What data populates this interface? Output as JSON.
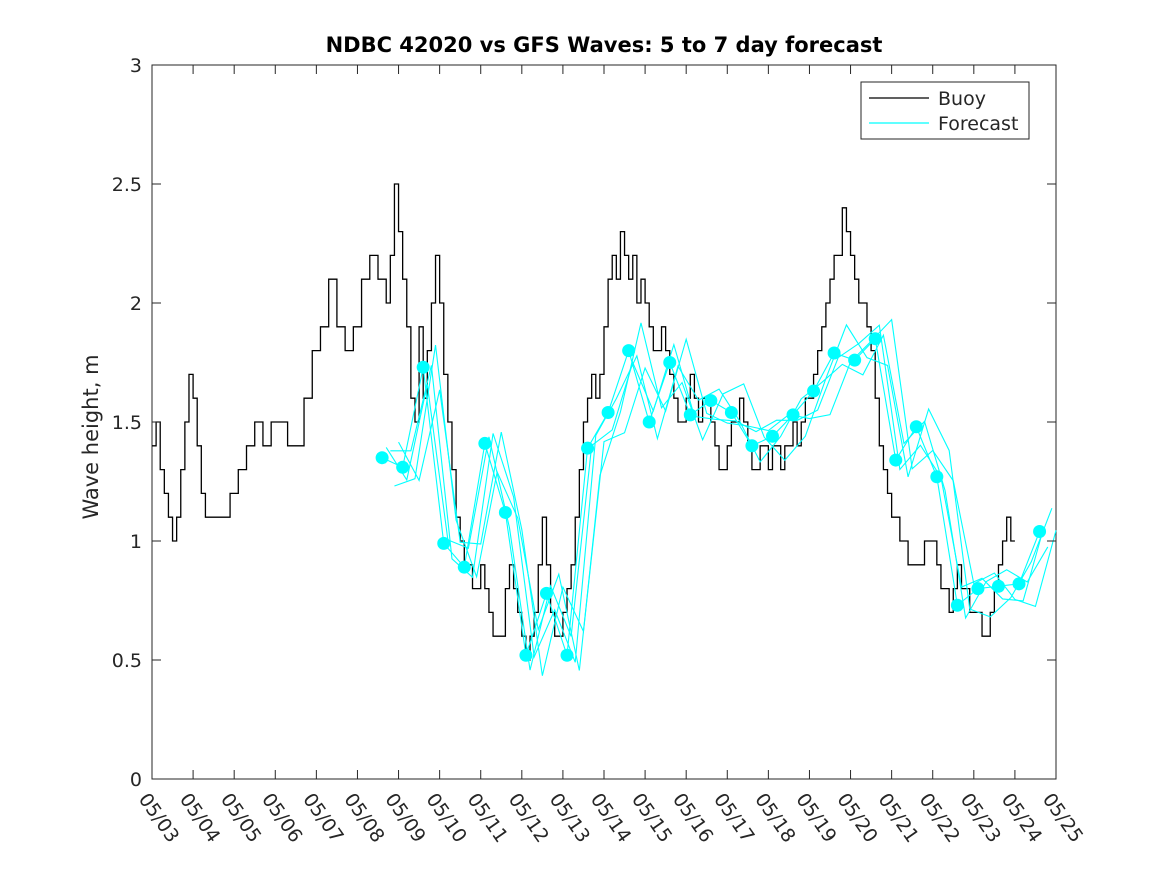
{
  "chart_data": {
    "type": "line",
    "title": "NDBC 42020 vs GFS Waves: 5 to 7 day forecast",
    "xlabel": "",
    "ylabel": "Wave height, m",
    "xlim": [
      "05/03",
      "05/25"
    ],
    "ylim": [
      0,
      3
    ],
    "x_ticks": [
      "05/03",
      "05/04",
      "05/05",
      "05/06",
      "05/07",
      "05/08",
      "05/09",
      "05/10",
      "05/11",
      "05/12",
      "05/13",
      "05/14",
      "05/15",
      "05/16",
      "05/17",
      "05/18",
      "05/19",
      "05/20",
      "05/21",
      "05/22",
      "05/23",
      "05/24",
      "05/25"
    ],
    "y_ticks": [
      "0",
      "0.5",
      "1",
      "1.5",
      "2",
      "2.5",
      "3"
    ],
    "grid": false,
    "legend_position": "top-right",
    "legend": [
      {
        "label": "Buoy",
        "color": "#000000"
      },
      {
        "label": "Forecast",
        "color": "#00ffff"
      }
    ],
    "colors": {
      "buoy": "#000000",
      "forecast": "#00ffff",
      "marker": "#00ffff"
    },
    "x_note": "x values are days since 05/03 00:00",
    "series": [
      {
        "name": "Buoy",
        "points": [
          [
            0,
            1.4
          ],
          [
            0.1,
            1.5
          ],
          [
            0.2,
            1.3
          ],
          [
            0.3,
            1.2
          ],
          [
            0.4,
            1.1
          ],
          [
            0.5,
            1.0
          ],
          [
            0.6,
            1.1
          ],
          [
            0.7,
            1.3
          ],
          [
            0.8,
            1.5
          ],
          [
            0.9,
            1.7
          ],
          [
            1.0,
            1.6
          ],
          [
            1.1,
            1.4
          ],
          [
            1.2,
            1.2
          ],
          [
            1.3,
            1.1
          ],
          [
            1.5,
            1.1
          ],
          [
            1.7,
            1.1
          ],
          [
            1.9,
            1.2
          ],
          [
            2.1,
            1.3
          ],
          [
            2.3,
            1.4
          ],
          [
            2.5,
            1.5
          ],
          [
            2.7,
            1.4
          ],
          [
            2.9,
            1.5
          ],
          [
            3.1,
            1.5
          ],
          [
            3.3,
            1.4
          ],
          [
            3.5,
            1.4
          ],
          [
            3.7,
            1.6
          ],
          [
            3.9,
            1.8
          ],
          [
            4.1,
            1.9
          ],
          [
            4.3,
            2.1
          ],
          [
            4.5,
            1.9
          ],
          [
            4.7,
            1.8
          ],
          [
            4.9,
            1.9
          ],
          [
            5.1,
            2.1
          ],
          [
            5.3,
            2.2
          ],
          [
            5.5,
            2.1
          ],
          [
            5.7,
            2.0
          ],
          [
            5.8,
            2.2
          ],
          [
            5.9,
            2.5
          ],
          [
            6.0,
            2.3
          ],
          [
            6.1,
            2.1
          ],
          [
            6.2,
            1.9
          ],
          [
            6.3,
            1.6
          ],
          [
            6.4,
            1.5
          ],
          [
            6.5,
            1.9
          ],
          [
            6.6,
            1.6
          ],
          [
            6.7,
            1.8
          ],
          [
            6.8,
            2.0
          ],
          [
            6.9,
            2.2
          ],
          [
            7.0,
            2.0
          ],
          [
            7.1,
            1.7
          ],
          [
            7.2,
            1.5
          ],
          [
            7.3,
            1.3
          ],
          [
            7.4,
            1.1
          ],
          [
            7.5,
            1.0
          ],
          [
            7.6,
            0.9
          ],
          [
            7.7,
            0.9
          ],
          [
            7.8,
            0.8
          ],
          [
            7.9,
            0.8
          ],
          [
            8.0,
            0.9
          ],
          [
            8.1,
            0.8
          ],
          [
            8.2,
            0.7
          ],
          [
            8.3,
            0.6
          ],
          [
            8.4,
            0.6
          ],
          [
            8.5,
            0.6
          ],
          [
            8.6,
            0.8
          ],
          [
            8.7,
            0.9
          ],
          [
            8.8,
            0.8
          ],
          [
            8.9,
            0.7
          ],
          [
            9.0,
            0.6
          ],
          [
            9.1,
            0.5
          ],
          [
            9.2,
            0.6
          ],
          [
            9.3,
            0.7
          ],
          [
            9.4,
            0.9
          ],
          [
            9.5,
            1.1
          ],
          [
            9.6,
            0.9
          ],
          [
            9.7,
            0.7
          ],
          [
            9.8,
            0.6
          ],
          [
            9.9,
            0.6
          ],
          [
            10.0,
            0.7
          ],
          [
            10.1,
            0.8
          ],
          [
            10.2,
            0.9
          ],
          [
            10.3,
            1.1
          ],
          [
            10.4,
            1.3
          ],
          [
            10.5,
            1.5
          ],
          [
            10.6,
            1.6
          ],
          [
            10.7,
            1.7
          ],
          [
            10.8,
            1.6
          ],
          [
            10.9,
            1.7
          ],
          [
            11.0,
            1.9
          ],
          [
            11.1,
            2.1
          ],
          [
            11.2,
            2.2
          ],
          [
            11.3,
            2.1
          ],
          [
            11.4,
            2.3
          ],
          [
            11.5,
            2.2
          ],
          [
            11.6,
            2.1
          ],
          [
            11.7,
            2.2
          ],
          [
            11.8,
            2.0
          ],
          [
            11.9,
            2.1
          ],
          [
            12.0,
            2.0
          ],
          [
            12.1,
            1.9
          ],
          [
            12.2,
            1.8
          ],
          [
            12.3,
            1.8
          ],
          [
            12.4,
            1.9
          ],
          [
            12.5,
            1.8
          ],
          [
            12.6,
            1.7
          ],
          [
            12.7,
            1.6
          ],
          [
            12.8,
            1.5
          ],
          [
            12.9,
            1.5
          ],
          [
            13.0,
            1.6
          ],
          [
            13.1,
            1.7
          ],
          [
            13.2,
            1.6
          ],
          [
            13.3,
            1.5
          ],
          [
            13.4,
            1.6
          ],
          [
            13.5,
            1.6
          ],
          [
            13.6,
            1.5
          ],
          [
            13.7,
            1.4
          ],
          [
            13.8,
            1.3
          ],
          [
            13.9,
            1.3
          ],
          [
            14.0,
            1.4
          ],
          [
            14.1,
            1.5
          ],
          [
            14.2,
            1.5
          ],
          [
            14.3,
            1.6
          ],
          [
            14.4,
            1.5
          ],
          [
            14.5,
            1.4
          ],
          [
            14.6,
            1.3
          ],
          [
            14.7,
            1.3
          ],
          [
            14.8,
            1.4
          ],
          [
            14.9,
            1.4
          ],
          [
            15.0,
            1.3
          ],
          [
            15.1,
            1.4
          ],
          [
            15.2,
            1.4
          ],
          [
            15.3,
            1.3
          ],
          [
            15.4,
            1.4
          ],
          [
            15.5,
            1.4
          ],
          [
            15.6,
            1.5
          ],
          [
            15.7,
            1.4
          ],
          [
            15.8,
            1.5
          ],
          [
            15.9,
            1.6
          ],
          [
            16.0,
            1.6
          ],
          [
            16.1,
            1.7
          ],
          [
            16.2,
            1.8
          ],
          [
            16.3,
            1.9
          ],
          [
            16.4,
            2.0
          ],
          [
            16.5,
            2.1
          ],
          [
            16.6,
            2.2
          ],
          [
            16.7,
            2.2
          ],
          [
            16.8,
            2.4
          ],
          [
            16.9,
            2.3
          ],
          [
            17.0,
            2.2
          ],
          [
            17.1,
            2.1
          ],
          [
            17.2,
            2.0
          ],
          [
            17.3,
            2.0
          ],
          [
            17.4,
            1.9
          ],
          [
            17.5,
            1.8
          ],
          [
            17.6,
            1.6
          ],
          [
            17.7,
            1.4
          ],
          [
            17.8,
            1.3
          ],
          [
            17.9,
            1.2
          ],
          [
            18.0,
            1.1
          ],
          [
            18.1,
            1.1
          ],
          [
            18.2,
            1.0
          ],
          [
            18.3,
            1.0
          ],
          [
            18.4,
            0.9
          ],
          [
            18.5,
            0.9
          ],
          [
            18.6,
            0.9
          ],
          [
            18.7,
            0.9
          ],
          [
            18.8,
            1.0
          ],
          [
            18.9,
            1.0
          ],
          [
            19.0,
            1.0
          ],
          [
            19.1,
            0.9
          ],
          [
            19.2,
            0.8
          ],
          [
            19.3,
            0.8
          ],
          [
            19.4,
            0.7
          ],
          [
            19.5,
            0.8
          ],
          [
            19.6,
            0.9
          ],
          [
            19.7,
            0.8
          ],
          [
            19.8,
            0.8
          ],
          [
            19.9,
            0.7
          ],
          [
            20.0,
            0.7
          ],
          [
            20.1,
            0.7
          ],
          [
            20.2,
            0.6
          ],
          [
            20.3,
            0.6
          ],
          [
            20.4,
            0.7
          ],
          [
            20.5,
            0.8
          ],
          [
            20.6,
            0.9
          ],
          [
            20.7,
            1.0
          ],
          [
            20.8,
            1.1
          ],
          [
            20.9,
            1.0
          ],
          [
            21.0,
            1.0
          ]
        ]
      },
      {
        "name": "Forecast",
        "points": [
          [
            5.6,
            1.35
          ],
          [
            6.1,
            1.31
          ],
          [
            6.6,
            1.73
          ],
          [
            7.1,
            0.99
          ],
          [
            7.6,
            0.89
          ],
          [
            8.1,
            1.41
          ],
          [
            8.6,
            1.12
          ],
          [
            9.1,
            0.52
          ],
          [
            9.6,
            0.78
          ],
          [
            10.1,
            0.52
          ],
          [
            10.6,
            1.39
          ],
          [
            11.1,
            1.54
          ],
          [
            11.6,
            1.8
          ],
          [
            12.1,
            1.5
          ],
          [
            12.6,
            1.75
          ],
          [
            13.1,
            1.53
          ],
          [
            13.6,
            1.59
          ],
          [
            14.1,
            1.54
          ],
          [
            14.6,
            1.4
          ],
          [
            15.1,
            1.44
          ],
          [
            15.6,
            1.53
          ],
          [
            16.1,
            1.63
          ],
          [
            16.6,
            1.79
          ],
          [
            17.1,
            1.76
          ],
          [
            17.6,
            1.85
          ],
          [
            18.1,
            1.34
          ],
          [
            18.6,
            1.48
          ],
          [
            19.1,
            1.27
          ],
          [
            19.6,
            0.73
          ],
          [
            20.1,
            0.8
          ],
          [
            20.6,
            0.81
          ],
          [
            21.1,
            0.82
          ],
          [
            21.6,
            1.04
          ]
        ]
      }
    ]
  }
}
